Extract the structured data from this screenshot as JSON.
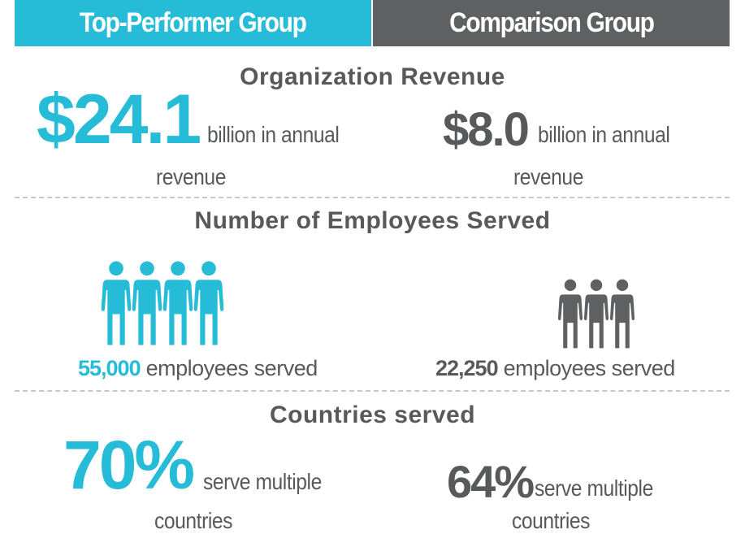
{
  "header": {
    "top_performer": "Top-Performer Group",
    "comparison": "Comparison Group"
  },
  "colors": {
    "top_performer": "#26bcd7",
    "comparison": "#5f6062",
    "text": "#58595b"
  },
  "revenue": {
    "title": "Organization Revenue",
    "top": {
      "value": "$24.1",
      "line1": "billion in annual",
      "line2": "revenue"
    },
    "comparison": {
      "value": "$8.0",
      "line1": "billion in annual",
      "line2": "revenue"
    }
  },
  "employees": {
    "title": "Number of Employees Served",
    "top": {
      "value": "55,000",
      "label": "employees served",
      "icon": "people-group-icon",
      "figures": 4
    },
    "comparison": {
      "value": "22,250",
      "label": "employees served",
      "icon": "people-group-icon",
      "figures": 3
    }
  },
  "countries": {
    "title": "Countries served",
    "top": {
      "value": "70%",
      "line1": "serve multiple",
      "line2": "countries"
    },
    "comparison": {
      "value": "64%",
      "line1": "serve multiple",
      "line2": "countries"
    }
  }
}
